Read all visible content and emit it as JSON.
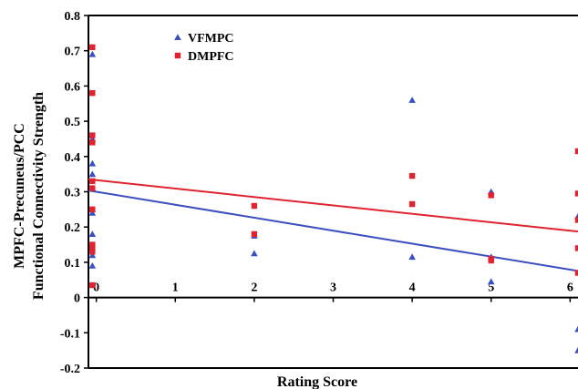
{
  "chart_data": {
    "type": "scatter",
    "title": "",
    "xlabel": "Rating Score",
    "ylabel_lines": [
      "MPFC-Precuneus/PCC",
      "Functional Connectivity Strength"
    ],
    "xlim": [
      -0.1,
      6.1
    ],
    "ylim": [
      -0.2,
      0.8
    ],
    "x_ticks": [
      0,
      1,
      2,
      3,
      4,
      5,
      6
    ],
    "x_tick_labels": [
      "0",
      "1",
      "2",
      "3",
      "4",
      "5",
      "6"
    ],
    "y_ticks": [
      -0.2,
      -0.1,
      0,
      0.1,
      0.2,
      0.3,
      0.4,
      0.5,
      0.6,
      0.7,
      0.8
    ],
    "y_tick_labels": [
      "-0.2",
      "-0.1",
      "0",
      "0.1",
      "0.2",
      "0.3",
      "0.4",
      "0.5",
      "0.6",
      "0.7",
      "0.8"
    ],
    "grid": false,
    "legend_position": "top-left",
    "series": [
      {
        "name": "VFMPC",
        "marker": "triangle",
        "color": "#3a4fc0",
        "points": [
          [
            -0.05,
            0.69
          ],
          [
            -0.05,
            0.45
          ],
          [
            -0.05,
            0.38
          ],
          [
            -0.05,
            0.35
          ],
          [
            -0.05,
            0.31
          ],
          [
            -0.05,
            0.25
          ],
          [
            -0.05,
            0.24
          ],
          [
            -0.05,
            0.18
          ],
          [
            -0.05,
            0.12
          ],
          [
            -0.05,
            0.09
          ],
          [
            2,
            0.175
          ],
          [
            2,
            0.125
          ],
          [
            4,
            0.56
          ],
          [
            4,
            0.115
          ],
          [
            5,
            0.3
          ],
          [
            5,
            0.115
          ],
          [
            5,
            0.045
          ],
          [
            6.1,
            0.23
          ],
          [
            6.1,
            -0.09
          ],
          [
            6.1,
            -0.15
          ]
        ],
        "fit_line": {
          "intercept": 0.3,
          "slope": -0.0368
        }
      },
      {
        "name": "DMPFC",
        "marker": "square",
        "color": "#e0232e",
        "points": [
          [
            -0.05,
            0.71
          ],
          [
            -0.05,
            0.58
          ],
          [
            -0.05,
            0.46
          ],
          [
            -0.05,
            0.44
          ],
          [
            -0.05,
            0.33
          ],
          [
            -0.05,
            0.31
          ],
          [
            -0.05,
            0.25
          ],
          [
            -0.05,
            0.15
          ],
          [
            -0.05,
            0.14
          ],
          [
            -0.05,
            0.13
          ],
          [
            -0.05,
            0.035
          ],
          [
            2,
            0.26
          ],
          [
            2,
            0.18
          ],
          [
            4,
            0.345
          ],
          [
            4,
            0.265
          ],
          [
            5,
            0.29
          ],
          [
            5,
            0.11
          ],
          [
            5,
            0.105
          ],
          [
            6.1,
            0.415
          ],
          [
            6.1,
            0.295
          ],
          [
            6.1,
            0.22
          ],
          [
            6.1,
            0.14
          ],
          [
            6.1,
            0.07
          ]
        ],
        "fit_line": {
          "intercept": 0.333,
          "slope": -0.0239
        }
      }
    ]
  }
}
